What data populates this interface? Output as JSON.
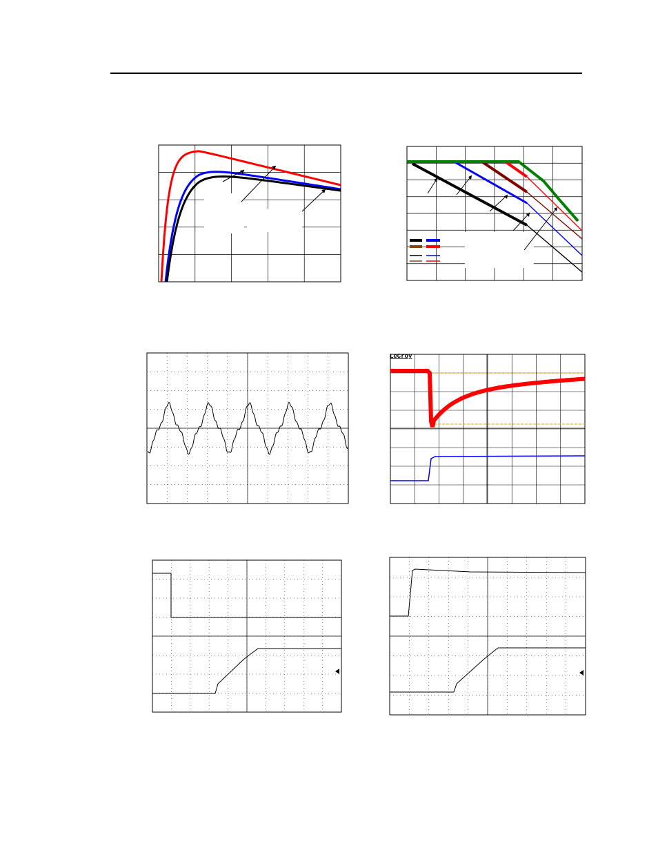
{
  "page": {
    "header_rule": true
  },
  "charts": {
    "efficiency": {
      "colors": {
        "red": "#ff0000",
        "blue": "#0000ff",
        "black": "#000000",
        "grid": "#000000"
      }
    },
    "derating": {
      "colors": {
        "green": "#008000",
        "darkred": "#800000",
        "red": "#ff0000",
        "blue": "#0000ff",
        "black": "#000000",
        "brown": "#8b4513"
      }
    },
    "ripple": {
      "trace_color": "#000000"
    },
    "transient": {
      "top_trace_color": "#ff0000",
      "bottom_trace_color": "#0000ff",
      "brand": "LeCroy"
    },
    "turn_on_1": {
      "trace_color": "#000000"
    },
    "turn_on_2": {
      "trace_color": "#000000"
    }
  }
}
